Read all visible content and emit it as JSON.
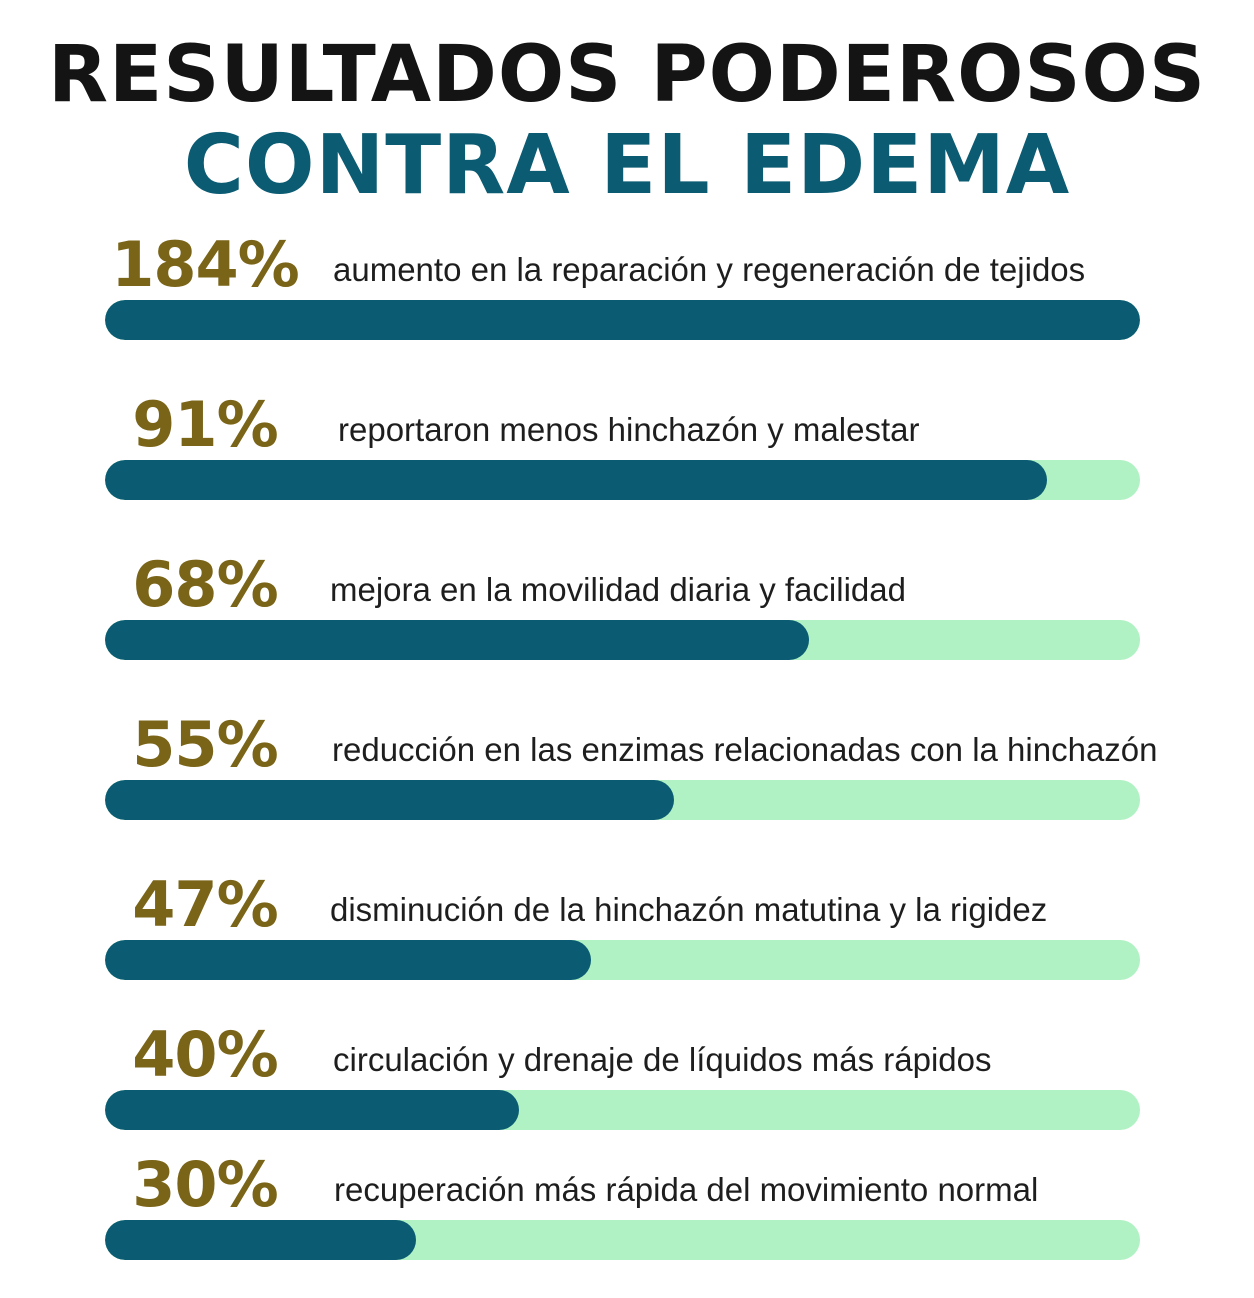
{
  "title": {
    "line1": "RESULTADOS PODEROSOS",
    "line2": "CONTRA EL EDEMA"
  },
  "colors": {
    "title_dark": "#141414",
    "title_accent": "#0b5b72",
    "percent": "#7a6418",
    "bar_fill": "#0b5b72",
    "bar_track": "#b0f2c3"
  },
  "chart_data": {
    "type": "bar",
    "orientation": "horizontal",
    "title": "RESULTADOS PODEROSOS CONTRA EL EDEMA",
    "xlim": [
      0,
      100
    ],
    "grid": false,
    "items": [
      {
        "label": "184%",
        "value": 184,
        "fill_fraction": 1.0,
        "description": "aumento en la reparación y regeneración de tejidos"
      },
      {
        "label": "91%",
        "value": 91,
        "fill_fraction": 0.91,
        "description": "reportaron menos hinchazón y malestar"
      },
      {
        "label": "68%",
        "value": 68,
        "fill_fraction": 0.68,
        "description": "mejora en la movilidad diaria y facilidad"
      },
      {
        "label": "55%",
        "value": 55,
        "fill_fraction": 0.55,
        "description": "reducción en las enzimas relacionadas con la hinchazón"
      },
      {
        "label": "47%",
        "value": 47,
        "fill_fraction": 0.47,
        "description": "disminución de la hinchazón matutina y la rigidez"
      },
      {
        "label": "40%",
        "value": 40,
        "fill_fraction": 0.4,
        "description": "circulación y drenaje de líquidos más rápidos"
      },
      {
        "label": "30%",
        "value": 30,
        "fill_fraction": 0.3,
        "description": "recuperación más rápida del movimiento normal"
      }
    ]
  }
}
